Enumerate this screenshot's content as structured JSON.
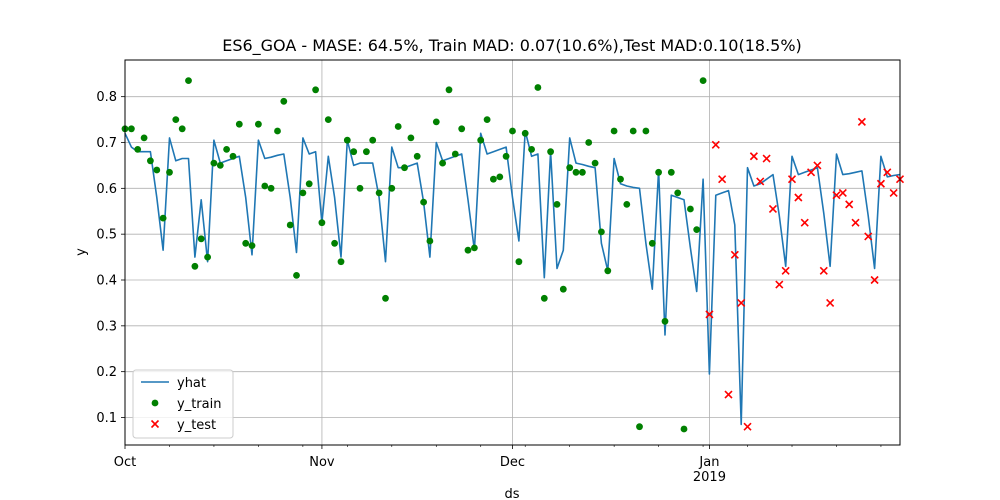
{
  "chart_data": {
    "type": "line",
    "title": "ES6_GOA - MASE: 64.5%, Train MAD: 0.07(10.6%),Test MAD:0.10(18.5%)",
    "xlabel": "ds",
    "ylabel": "y",
    "x_start": "2018-10-01",
    "x_end": "2019-01-31",
    "ylim": [
      0.04,
      0.88
    ],
    "grid": true,
    "legend_position": "lower-left",
    "x_ticks": [
      {
        "date": "2018-10-01",
        "label": "Oct",
        "sublabel": ""
      },
      {
        "date": "2018-11-01",
        "label": "Nov",
        "sublabel": ""
      },
      {
        "date": "2018-12-01",
        "label": "Dec",
        "sublabel": ""
      },
      {
        "date": "2019-01-01",
        "label": "Jan",
        "sublabel": "2019"
      }
    ],
    "y_ticks": [
      {
        "value": 0.1,
        "label": "0.1"
      },
      {
        "value": 0.2,
        "label": "0.2"
      },
      {
        "value": 0.3,
        "label": "0.3"
      },
      {
        "value": 0.4,
        "label": "0.4"
      },
      {
        "value": 0.5,
        "label": "0.5"
      },
      {
        "value": 0.6,
        "label": "0.6"
      },
      {
        "value": 0.7,
        "label": "0.7"
      },
      {
        "value": 0.8,
        "label": "0.8"
      }
    ],
    "colors": {
      "yhat": "#1f77b4",
      "y_train": "#008000",
      "y_test": "#ff0000"
    },
    "series": [
      {
        "name": "yhat",
        "kind": "line",
        "points": [
          [
            "2018-10-01",
            0.72
          ],
          [
            "2018-10-02",
            0.69
          ],
          [
            "2018-10-03",
            0.68
          ],
          [
            "2018-10-04",
            0.68
          ],
          [
            "2018-10-05",
            0.68
          ],
          [
            "2018-10-06",
            0.58
          ],
          [
            "2018-10-07",
            0.465
          ],
          [
            "2018-10-08",
            0.71
          ],
          [
            "2018-10-09",
            0.66
          ],
          [
            "2018-10-10",
            0.665
          ],
          [
            "2018-10-11",
            0.665
          ],
          [
            "2018-10-12",
            0.45
          ],
          [
            "2018-10-13",
            0.575
          ],
          [
            "2018-10-14",
            0.44
          ],
          [
            "2018-10-15",
            0.705
          ],
          [
            "2018-10-16",
            0.655
          ],
          [
            "2018-10-17",
            0.66
          ],
          [
            "2018-10-18",
            0.665
          ],
          [
            "2018-10-19",
            0.67
          ],
          [
            "2018-10-20",
            0.58
          ],
          [
            "2018-10-21",
            0.455
          ],
          [
            "2018-10-22",
            0.705
          ],
          [
            "2018-10-23",
            0.665
          ],
          [
            "2018-10-24",
            0.668
          ],
          [
            "2018-10-25",
            0.672
          ],
          [
            "2018-10-26",
            0.675
          ],
          [
            "2018-10-27",
            0.58
          ],
          [
            "2018-10-28",
            0.46
          ],
          [
            "2018-10-29",
            0.71
          ],
          [
            "2018-10-30",
            0.675
          ],
          [
            "2018-10-31",
            0.68
          ],
          [
            "2018-11-01",
            0.525
          ],
          [
            "2018-11-02",
            0.67
          ],
          [
            "2018-11-03",
            0.58
          ],
          [
            "2018-11-04",
            0.45
          ],
          [
            "2018-11-05",
            0.705
          ],
          [
            "2018-11-06",
            0.65
          ],
          [
            "2018-11-07",
            0.655
          ],
          [
            "2018-11-08",
            0.655
          ],
          [
            "2018-11-09",
            0.655
          ],
          [
            "2018-11-10",
            0.58
          ],
          [
            "2018-11-11",
            0.44
          ],
          [
            "2018-11-12",
            0.69
          ],
          [
            "2018-11-13",
            0.645
          ],
          [
            "2018-11-14",
            0.645
          ],
          [
            "2018-11-15",
            0.65
          ],
          [
            "2018-11-16",
            0.655
          ],
          [
            "2018-11-17",
            0.57
          ],
          [
            "2018-11-18",
            0.45
          ],
          [
            "2018-11-19",
            0.7
          ],
          [
            "2018-11-20",
            0.66
          ],
          [
            "2018-11-21",
            0.665
          ],
          [
            "2018-11-22",
            0.67
          ],
          [
            "2018-11-23",
            0.675
          ],
          [
            "2018-11-24",
            0.575
          ],
          [
            "2018-11-25",
            0.465
          ],
          [
            "2018-11-26",
            0.72
          ],
          [
            "2018-11-27",
            0.675
          ],
          [
            "2018-11-28",
            0.68
          ],
          [
            "2018-11-29",
            0.685
          ],
          [
            "2018-11-30",
            0.69
          ],
          [
            "2018-12-01",
            0.58
          ],
          [
            "2018-12-02",
            0.485
          ],
          [
            "2018-12-03",
            0.725
          ],
          [
            "2018-12-04",
            0.67
          ],
          [
            "2018-12-05",
            0.675
          ],
          [
            "2018-12-06",
            0.405
          ],
          [
            "2018-12-07",
            0.68
          ],
          [
            "2018-12-08",
            0.425
          ],
          [
            "2018-12-09",
            0.465
          ],
          [
            "2018-12-10",
            0.71
          ],
          [
            "2018-12-11",
            0.655
          ],
          [
            "2018-12-12",
            0.652
          ],
          [
            "2018-12-13",
            0.648
          ],
          [
            "2018-12-14",
            0.645
          ],
          [
            "2018-12-15",
            0.48
          ],
          [
            "2018-12-16",
            0.42
          ],
          [
            "2018-12-17",
            0.665
          ],
          [
            "2018-12-18",
            0.61
          ],
          [
            "2018-12-19",
            0.605
          ],
          [
            "2018-12-20",
            0.602
          ],
          [
            "2018-12-21",
            0.6
          ],
          [
            "2018-12-22",
            0.48
          ],
          [
            "2018-12-23",
            0.38
          ],
          [
            "2018-12-24",
            0.64
          ],
          [
            "2018-12-25",
            0.28
          ],
          [
            "2018-12-26",
            0.585
          ],
          [
            "2018-12-27",
            0.58
          ],
          [
            "2018-12-28",
            0.575
          ],
          [
            "2018-12-29",
            0.47
          ],
          [
            "2018-12-30",
            0.375
          ],
          [
            "2018-12-31",
            0.62
          ],
          [
            "2019-01-01",
            0.195
          ],
          [
            "2019-01-02",
            0.585
          ],
          [
            "2019-01-03",
            0.59
          ],
          [
            "2019-01-04",
            0.595
          ],
          [
            "2019-01-05",
            0.52
          ],
          [
            "2019-01-06",
            0.085
          ],
          [
            "2019-01-07",
            0.645
          ],
          [
            "2019-01-08",
            0.605
          ],
          [
            "2019-01-09",
            0.61
          ],
          [
            "2019-01-10",
            0.62
          ],
          [
            "2019-01-11",
            0.63
          ],
          [
            "2019-01-12",
            0.54
          ],
          [
            "2019-01-13",
            0.43
          ],
          [
            "2019-01-14",
            0.67
          ],
          [
            "2019-01-15",
            0.63
          ],
          [
            "2019-01-16",
            0.635
          ],
          [
            "2019-01-17",
            0.64
          ],
          [
            "2019-01-18",
            0.645
          ],
          [
            "2019-01-19",
            0.545
          ],
          [
            "2019-01-20",
            0.43
          ],
          [
            "2019-01-21",
            0.675
          ],
          [
            "2019-01-22",
            0.63
          ],
          [
            "2019-01-23",
            0.632
          ],
          [
            "2019-01-24",
            0.635
          ],
          [
            "2019-01-25",
            0.638
          ],
          [
            "2019-01-26",
            0.54
          ],
          [
            "2019-01-27",
            0.425
          ],
          [
            "2019-01-28",
            0.67
          ],
          [
            "2019-01-29",
            0.625
          ],
          [
            "2019-01-30",
            0.628
          ],
          [
            "2019-01-31",
            0.63
          ]
        ]
      },
      {
        "name": "y_train",
        "kind": "scatter-circle",
        "points": [
          [
            "2018-10-01",
            0.73
          ],
          [
            "2018-10-02",
            0.73
          ],
          [
            "2018-10-03",
            0.685
          ],
          [
            "2018-10-04",
            0.71
          ],
          [
            "2018-10-05",
            0.66
          ],
          [
            "2018-10-06",
            0.64
          ],
          [
            "2018-10-07",
            0.535
          ],
          [
            "2018-10-08",
            0.635
          ],
          [
            "2018-10-09",
            0.75
          ],
          [
            "2018-10-10",
            0.73
          ],
          [
            "2018-10-11",
            0.835
          ],
          [
            "2018-10-12",
            0.43
          ],
          [
            "2018-10-13",
            0.49
          ],
          [
            "2018-10-14",
            0.45
          ],
          [
            "2018-10-15",
            0.655
          ],
          [
            "2018-10-16",
            0.65
          ],
          [
            "2018-10-17",
            0.685
          ],
          [
            "2018-10-18",
            0.67
          ],
          [
            "2018-10-19",
            0.74
          ],
          [
            "2018-10-20",
            0.48
          ],
          [
            "2018-10-21",
            0.475
          ],
          [
            "2018-10-22",
            0.74
          ],
          [
            "2018-10-23",
            0.605
          ],
          [
            "2018-10-24",
            0.6
          ],
          [
            "2018-10-25",
            0.725
          ],
          [
            "2018-10-26",
            0.79
          ],
          [
            "2018-10-27",
            0.52
          ],
          [
            "2018-10-28",
            0.41
          ],
          [
            "2018-10-29",
            0.59
          ],
          [
            "2018-10-30",
            0.61
          ],
          [
            "2018-10-31",
            0.815
          ],
          [
            "2018-11-01",
            0.525
          ],
          [
            "2018-11-02",
            0.75
          ],
          [
            "2018-11-03",
            0.48
          ],
          [
            "2018-11-04",
            0.44
          ],
          [
            "2018-11-05",
            0.705
          ],
          [
            "2018-11-06",
            0.68
          ],
          [
            "2018-11-07",
            0.6
          ],
          [
            "2018-11-08",
            0.68
          ],
          [
            "2018-11-09",
            0.705
          ],
          [
            "2018-11-10",
            0.59
          ],
          [
            "2018-11-11",
            0.36
          ],
          [
            "2018-11-12",
            0.6
          ],
          [
            "2018-11-13",
            0.735
          ],
          [
            "2018-11-14",
            0.645
          ],
          [
            "2018-11-15",
            0.71
          ],
          [
            "2018-11-16",
            0.67
          ],
          [
            "2018-11-17",
            0.57
          ],
          [
            "2018-11-18",
            0.485
          ],
          [
            "2018-11-19",
            0.745
          ],
          [
            "2018-11-20",
            0.655
          ],
          [
            "2018-11-21",
            0.815
          ],
          [
            "2018-11-22",
            0.675
          ],
          [
            "2018-11-23",
            0.73
          ],
          [
            "2018-11-24",
            0.465
          ],
          [
            "2018-11-25",
            0.47
          ],
          [
            "2018-11-26",
            0.705
          ],
          [
            "2018-11-27",
            0.75
          ],
          [
            "2018-11-28",
            0.62
          ],
          [
            "2018-11-29",
            0.625
          ],
          [
            "2018-11-30",
            0.67
          ],
          [
            "2018-12-01",
            0.725
          ],
          [
            "2018-12-02",
            0.44
          ],
          [
            "2018-12-03",
            0.72
          ],
          [
            "2018-12-04",
            0.685
          ],
          [
            "2018-12-05",
            0.82
          ],
          [
            "2018-12-06",
            0.36
          ],
          [
            "2018-12-07",
            0.68
          ],
          [
            "2018-12-08",
            0.565
          ],
          [
            "2018-12-09",
            0.38
          ],
          [
            "2018-12-10",
            0.645
          ],
          [
            "2018-12-11",
            0.635
          ],
          [
            "2018-12-12",
            0.635
          ],
          [
            "2018-12-13",
            0.7
          ],
          [
            "2018-12-14",
            0.655
          ],
          [
            "2018-12-15",
            0.505
          ],
          [
            "2018-12-16",
            0.42
          ],
          [
            "2018-12-17",
            0.725
          ],
          [
            "2018-12-18",
            0.62
          ],
          [
            "2018-12-19",
            0.565
          ],
          [
            "2018-12-20",
            0.725
          ],
          [
            "2018-12-21",
            0.08
          ],
          [
            "2018-12-22",
            0.725
          ],
          [
            "2018-12-23",
            0.48
          ],
          [
            "2018-12-24",
            0.635
          ],
          [
            "2018-12-25",
            0.31
          ],
          [
            "2018-12-26",
            0.635
          ],
          [
            "2018-12-27",
            0.59
          ],
          [
            "2018-12-28",
            0.075
          ],
          [
            "2018-12-29",
            0.555
          ],
          [
            "2018-12-30",
            0.51
          ],
          [
            "2018-12-31",
            0.835
          ]
        ]
      },
      {
        "name": "y_test",
        "kind": "scatter-x",
        "points": [
          [
            "2019-01-01",
            0.325
          ],
          [
            "2019-01-02",
            0.695
          ],
          [
            "2019-01-03",
            0.62
          ],
          [
            "2019-01-04",
            0.15
          ],
          [
            "2019-01-05",
            0.455
          ],
          [
            "2019-01-06",
            0.35
          ],
          [
            "2019-01-07",
            0.08
          ],
          [
            "2019-01-08",
            0.67
          ],
          [
            "2019-01-09",
            0.615
          ],
          [
            "2019-01-10",
            0.665
          ],
          [
            "2019-01-11",
            0.555
          ],
          [
            "2019-01-12",
            0.39
          ],
          [
            "2019-01-13",
            0.42
          ],
          [
            "2019-01-14",
            0.62
          ],
          [
            "2019-01-15",
            0.58
          ],
          [
            "2019-01-16",
            0.525
          ],
          [
            "2019-01-17",
            0.635
          ],
          [
            "2019-01-18",
            0.65
          ],
          [
            "2019-01-19",
            0.42
          ],
          [
            "2019-01-20",
            0.35
          ],
          [
            "2019-01-21",
            0.585
          ],
          [
            "2019-01-22",
            0.59
          ],
          [
            "2019-01-23",
            0.565
          ],
          [
            "2019-01-24",
            0.525
          ],
          [
            "2019-01-25",
            0.745
          ],
          [
            "2019-01-26",
            0.495
          ],
          [
            "2019-01-27",
            0.4
          ],
          [
            "2019-01-28",
            0.61
          ],
          [
            "2019-01-29",
            0.635
          ],
          [
            "2019-01-30",
            0.59
          ],
          [
            "2019-01-31",
            0.62
          ]
        ]
      }
    ]
  }
}
